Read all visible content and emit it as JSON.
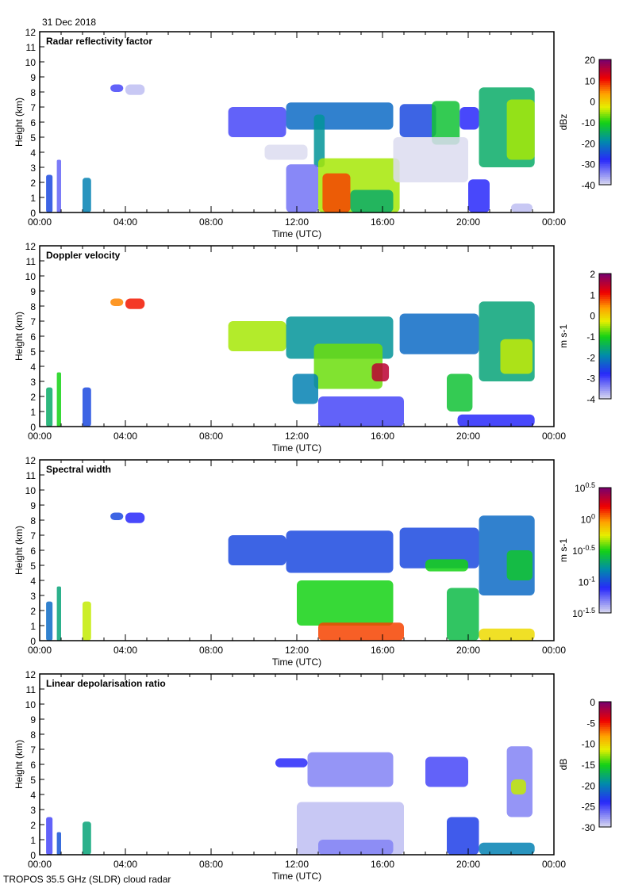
{
  "header": {
    "date": "31 Dec 2018"
  },
  "footer": {
    "instrument": "TROPOS 35.5 GHz (SLDR) cloud radar"
  },
  "chart_data": [
    {
      "type": "heatmap",
      "title": "Radar reflectivity factor",
      "xlabel": "Time (UTC)",
      "ylabel": "Height (km)",
      "xlim": [
        0,
        24
      ],
      "ylim": [
        0,
        12
      ],
      "xticks": [
        "00:00",
        "04:00",
        "08:00",
        "12:00",
        "16:00",
        "20:00",
        "00:00"
      ],
      "yticks": [
        "0",
        "1",
        "2",
        "3",
        "4",
        "5",
        "6",
        "7",
        "8",
        "9",
        "10",
        "11",
        "12"
      ],
      "colorbar": {
        "label": "dBz",
        "range": [
          -40,
          20
        ],
        "ticks": [
          {
            "base": "20"
          },
          {
            "base": "10"
          },
          {
            "base": "0"
          },
          {
            "base": "-10"
          },
          {
            "base": "-20"
          },
          {
            "base": "-30"
          },
          {
            "base": "-40"
          }
        ]
      },
      "cells": [
        [
          0.3,
          0.6,
          0,
          2.5,
          -25
        ],
        [
          0.8,
          1.0,
          0,
          3.5,
          -32
        ],
        [
          2.0,
          2.4,
          0,
          2.3,
          -20
        ],
        [
          3.3,
          3.9,
          8.0,
          8.5,
          -30
        ],
        [
          4.0,
          4.9,
          7.8,
          8.5,
          -38
        ],
        [
          8.8,
          11.5,
          5.0,
          7.0,
          -30
        ],
        [
          11.5,
          16.5,
          5.5,
          7.3,
          -22
        ],
        [
          12.8,
          13.3,
          3.0,
          6.5,
          -18
        ],
        [
          11.5,
          13.0,
          0,
          3.2,
          -33
        ],
        [
          13.0,
          16.8,
          0,
          3.6,
          -5
        ],
        [
          13.2,
          14.5,
          0,
          2.6,
          8
        ],
        [
          14.5,
          16.5,
          0,
          1.5,
          -15
        ],
        [
          16.8,
          18.5,
          5.0,
          7.2,
          -25
        ],
        [
          18.3,
          19.6,
          4.5,
          7.4,
          -12
        ],
        [
          19.6,
          20.5,
          5.5,
          7.0,
          -28
        ],
        [
          20.5,
          23.1,
          3.0,
          8.3,
          -15
        ],
        [
          21.8,
          23.1,
          3.5,
          7.5,
          -5
        ],
        [
          20.0,
          21.0,
          0,
          2.2,
          -28
        ],
        [
          22.0,
          23.0,
          0,
          0.6,
          -38
        ],
        [
          10.5,
          12.5,
          3.5,
          4.5,
          -40
        ],
        [
          16.5,
          20.0,
          2.0,
          5.0,
          -40
        ]
      ]
    },
    {
      "type": "heatmap",
      "title": "Doppler velocity",
      "xlabel": "Time (UTC)",
      "ylabel": "Height (km)",
      "xlim": [
        0,
        24
      ],
      "ylim": [
        0,
        12
      ],
      "xticks": [
        "00:00",
        "04:00",
        "08:00",
        "12:00",
        "16:00",
        "20:00",
        "00:00"
      ],
      "yticks": [
        "0",
        "1",
        "2",
        "3",
        "4",
        "5",
        "6",
        "7",
        "8",
        "9",
        "10",
        "11",
        "12"
      ],
      "colorbar": {
        "label": "m s-1",
        "range": [
          -4,
          2
        ],
        "ticks": [
          {
            "base": "2"
          },
          {
            "base": "1"
          },
          {
            "base": "0"
          },
          {
            "base": "-1"
          },
          {
            "base": "-2"
          },
          {
            "base": "-3"
          },
          {
            "base": "-4"
          }
        ]
      },
      "cells": [
        [
          0.3,
          0.6,
          0,
          2.6,
          -1.5
        ],
        [
          0.8,
          1.0,
          0,
          3.6,
          -1.0
        ],
        [
          2.0,
          2.4,
          0,
          2.6,
          -2.5
        ],
        [
          3.3,
          3.9,
          8.0,
          8.5,
          0.5
        ],
        [
          4.0,
          4.9,
          7.8,
          8.5,
          1.0
        ],
        [
          8.8,
          11.5,
          5.0,
          7.0,
          -0.5
        ],
        [
          11.5,
          16.5,
          4.5,
          7.3,
          -1.8
        ],
        [
          12.8,
          16.0,
          2.5,
          5.5,
          -0.7
        ],
        [
          11.8,
          13.0,
          1.5,
          3.5,
          -2.0
        ],
        [
          13.0,
          17.0,
          0,
          2.0,
          -3.0
        ],
        [
          15.5,
          16.3,
          3.0,
          4.2,
          1.5
        ],
        [
          16.8,
          20.5,
          4.8,
          7.5,
          -2.2
        ],
        [
          19.0,
          20.2,
          1.0,
          3.5,
          -1.2
        ],
        [
          20.5,
          23.1,
          3.0,
          8.3,
          -1.6
        ],
        [
          21.5,
          23.0,
          3.5,
          5.8,
          -0.4
        ],
        [
          19.5,
          23.1,
          0,
          0.8,
          -2.8
        ]
      ]
    },
    {
      "type": "heatmap",
      "title": "Spectral width",
      "xlabel": "Time (UTC)",
      "ylabel": "Height (km)",
      "xlim": [
        0,
        24
      ],
      "ylim": [
        0,
        12
      ],
      "xticks": [
        "00:00",
        "04:00",
        "08:00",
        "12:00",
        "16:00",
        "20:00",
        "00:00"
      ],
      "yticks": [
        "0",
        "1",
        "2",
        "3",
        "4",
        "5",
        "6",
        "7",
        "8",
        "9",
        "10",
        "11",
        "12"
      ],
      "colorbar": {
        "label": "m s-1",
        "range": [
          -1.5,
          0.5
        ],
        "ticks": [
          {
            "base": "10",
            "exp": "0.5"
          },
          {
            "base": "10",
            "exp": "0"
          },
          {
            "base": "10",
            "exp": "-0.5"
          },
          {
            "base": "10",
            "exp": "-1"
          },
          {
            "base": "10",
            "exp": "-1.5"
          }
        ]
      },
      "cells": [
        [
          0.3,
          0.6,
          0,
          2.6,
          -0.9
        ],
        [
          0.8,
          1.0,
          0,
          3.6,
          -0.7
        ],
        [
          2.0,
          2.4,
          0,
          2.6,
          -0.3
        ],
        [
          3.3,
          3.9,
          8.0,
          8.5,
          -1.0
        ],
        [
          4.0,
          4.9,
          7.8,
          8.5,
          -1.1
        ],
        [
          8.8,
          11.5,
          5.0,
          7.0,
          -1.0
        ],
        [
          11.5,
          16.5,
          4.5,
          7.3,
          -1.0
        ],
        [
          12.0,
          16.5,
          1.0,
          4.0,
          -0.5
        ],
        [
          13.0,
          17.0,
          0,
          1.2,
          0.1
        ],
        [
          16.8,
          20.5,
          4.8,
          7.5,
          -1.0
        ],
        [
          18.0,
          20.0,
          4.6,
          5.4,
          -0.5
        ],
        [
          19.0,
          20.5,
          0,
          3.5,
          -0.6
        ],
        [
          20.5,
          23.1,
          3.0,
          8.3,
          -0.9
        ],
        [
          21.8,
          23.0,
          4.0,
          6.0,
          -0.55
        ],
        [
          20.5,
          23.1,
          0,
          0.8,
          -0.2
        ]
      ]
    },
    {
      "type": "heatmap",
      "title": "Linear depolarisation ratio",
      "xlabel": "Time (UTC)",
      "ylabel": "Height (km)",
      "xlim": [
        0,
        24
      ],
      "ylim": [
        0,
        12
      ],
      "xticks": [
        "00:00",
        "04:00",
        "08:00",
        "12:00",
        "16:00",
        "20:00",
        "00:00"
      ],
      "yticks": [
        "0",
        "1",
        "2",
        "3",
        "4",
        "5",
        "6",
        "7",
        "8",
        "9",
        "10",
        "11",
        "12"
      ],
      "colorbar": {
        "label": "dB",
        "range": [
          -30,
          0
        ],
        "ticks": [
          {
            "base": "0"
          },
          {
            "base": "-5"
          },
          {
            "base": "-10"
          },
          {
            "base": "-15"
          },
          {
            "base": "-20"
          },
          {
            "base": "-25"
          },
          {
            "base": "-30"
          }
        ]
      },
      "cells": [
        [
          0.3,
          0.6,
          0,
          2.5,
          -25
        ],
        [
          0.8,
          1.0,
          0,
          1.5,
          -22
        ],
        [
          2.0,
          2.4,
          0,
          2.2,
          -18
        ],
        [
          11.0,
          12.5,
          5.8,
          6.4,
          -24
        ],
        [
          12.5,
          16.5,
          4.5,
          6.8,
          -27
        ],
        [
          12.0,
          17.0,
          0,
          3.5,
          -29
        ],
        [
          13.0,
          16.5,
          0,
          1.0,
          -27
        ],
        [
          18.0,
          20.0,
          4.5,
          6.5,
          -25
        ],
        [
          19.0,
          20.5,
          0,
          2.5,
          -23
        ],
        [
          21.8,
          23.0,
          2.5,
          7.2,
          -27
        ],
        [
          22.0,
          22.7,
          4.0,
          5.0,
          -12
        ],
        [
          20.5,
          23.1,
          0,
          0.8,
          -20
        ]
      ]
    }
  ]
}
